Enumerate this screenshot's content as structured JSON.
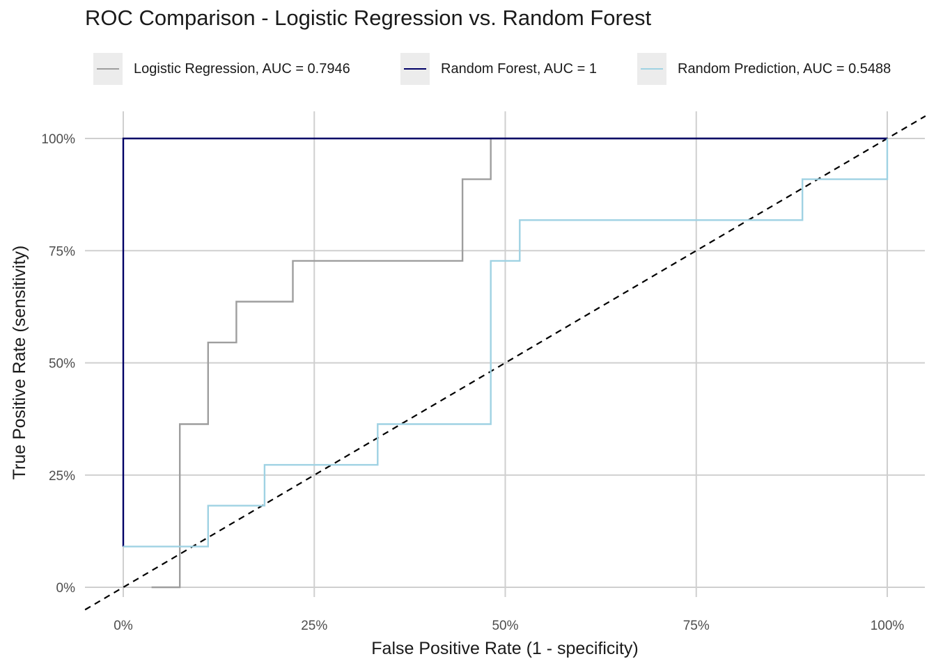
{
  "chart_data": {
    "type": "line",
    "title": "ROC Comparison - Logistic Regression vs. Random Forest",
    "xlabel": "False Positive Rate (1 - specificity)",
    "ylabel": "True Positive Rate (sensitivity)",
    "xlim": [
      0,
      1
    ],
    "ylim": [
      0,
      1
    ],
    "grid": true,
    "legend_position": "top",
    "x_ticks": [
      0,
      0.25,
      0.5,
      0.75,
      1
    ],
    "x_tick_labels": [
      "0%",
      "25%",
      "50%",
      "75%",
      "100%"
    ],
    "y_ticks": [
      0,
      0.25,
      0.5,
      0.75,
      1
    ],
    "y_tick_labels": [
      "0%",
      "25%",
      "50%",
      "75%",
      "100%"
    ],
    "series": [
      {
        "name": "Logistic Regression, AUC = 0.7946",
        "color": "#9e9e9e",
        "x": [
          0.037,
          0.074,
          0.074,
          0.111,
          0.111,
          0.148,
          0.148,
          0.222,
          0.222,
          0.444,
          0.444,
          0.481,
          0.481,
          1.0
        ],
        "y": [
          0,
          0,
          0.3636,
          0.3636,
          0.5455,
          0.5455,
          0.6364,
          0.6364,
          0.7273,
          0.7273,
          0.9091,
          0.9091,
          1.0,
          1.0
        ]
      },
      {
        "name": "Random Forest, AUC = 1",
        "color": "#000066",
        "x": [
          0,
          0,
          1.0
        ],
        "y": [
          0.0909,
          1.0,
          1.0
        ]
      },
      {
        "name": "Random Prediction, AUC = 0.5488",
        "color": "#9fd2e3",
        "x": [
          0,
          0.111,
          0.111,
          0.185,
          0.185,
          0.333,
          0.333,
          0.481,
          0.481,
          0.519,
          0.519,
          0.889,
          0.889,
          1.0,
          1.0
        ],
        "y": [
          0.0909,
          0.0909,
          0.1818,
          0.1818,
          0.2727,
          0.2727,
          0.3636,
          0.3636,
          0.7273,
          0.7273,
          0.8182,
          0.8182,
          0.9091,
          0.9091,
          1.0
        ]
      }
    ],
    "reference_line": {
      "color": "#000000",
      "style": "dashed",
      "x": [
        -0.05,
        1.05
      ],
      "y": [
        -0.05,
        1.05
      ]
    }
  }
}
